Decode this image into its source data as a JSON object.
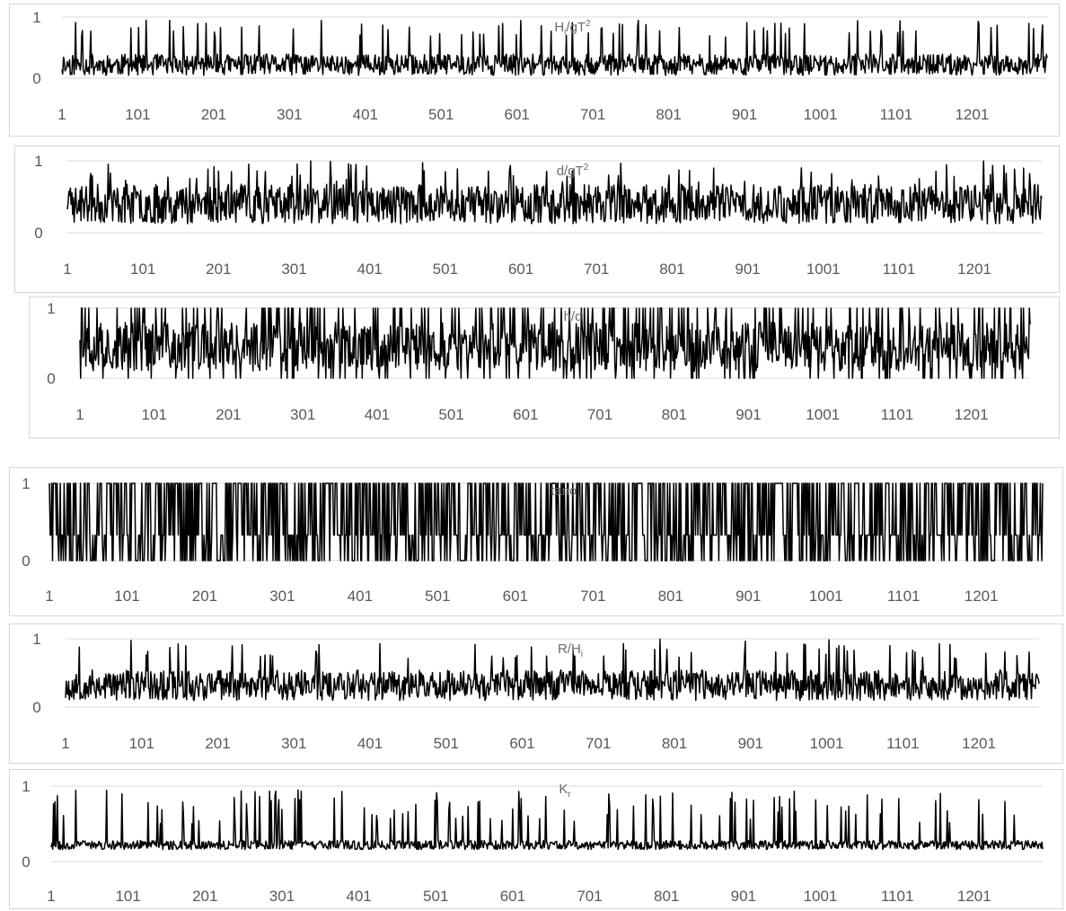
{
  "chart_data": [
    {
      "type": "line",
      "title": "Hi/gT2",
      "title_parts": {
        "main": "H",
        "sub": "i",
        "rest": "/gT",
        "sup": "2"
      },
      "x_tick_labels": [
        "1",
        "101",
        "201",
        "301",
        "401",
        "501",
        "601",
        "701",
        "801",
        "901",
        "1001",
        "1101",
        "1201"
      ],
      "xlim": [
        1,
        1300
      ],
      "ylim": [
        0,
        1
      ],
      "y_tick_labels": [
        "0",
        "1"
      ],
      "series": [
        {
          "n_points": 1300,
          "seed": 11,
          "mode": "low",
          "base": 0.22,
          "spread": 0.35,
          "peak": 0.95
        }
      ]
    },
    {
      "type": "line",
      "title": "d/gT2",
      "title_parts": {
        "main": "d",
        "sub": "",
        "rest": "/gT",
        "sup": "2"
      },
      "x_tick_labels": [
        "1",
        "101",
        "201",
        "301",
        "401",
        "501",
        "601",
        "701",
        "801",
        "901",
        "1001",
        "1101",
        "1201"
      ],
      "xlim": [
        1,
        1290
      ],
      "ylim": [
        0,
        1
      ],
      "y_tick_labels": [
        "0",
        "1"
      ],
      "series": [
        {
          "n_points": 1290,
          "seed": 23,
          "mode": "mid",
          "base": 0.4,
          "spread": 0.55,
          "peak": 1.0
        }
      ]
    },
    {
      "type": "line",
      "title": "h/d",
      "title_parts": {
        "main": "h/d",
        "sub": "",
        "rest": "",
        "sup": ""
      },
      "x_tick_labels": [
        "1",
        "101",
        "201",
        "301",
        "401",
        "501",
        "601",
        "701",
        "801",
        "901",
        "1001",
        "1101",
        "1201"
      ],
      "xlim": [
        1,
        1280
      ],
      "ylim": [
        0,
        1
      ],
      "y_tick_labels": [
        "0",
        "1"
      ],
      "series": [
        {
          "n_points": 1280,
          "seed": 37,
          "mode": "high",
          "base": 0.45,
          "spread": 0.7,
          "peak": 1.0
        }
      ]
    },
    {
      "type": "line",
      "title": "tanα",
      "title_parts": {
        "main": "tanα",
        "sub": "",
        "rest": "",
        "sup": ""
      },
      "x_tick_labels": [
        "1",
        "101",
        "201",
        "301",
        "401",
        "501",
        "601",
        "701",
        "801",
        "901",
        "1001",
        "1101",
        "1201"
      ],
      "xlim": [
        1,
        1280
      ],
      "ylim": [
        0,
        1
      ],
      "y_tick_labels": [
        "0",
        "1"
      ],
      "series": [
        {
          "n_points": 1280,
          "seed": 41,
          "mode": "binary",
          "levels": [
            0,
            0.33,
            1
          ]
        }
      ]
    },
    {
      "type": "line",
      "title": "R/Hi",
      "title_parts": {
        "main": "R/H",
        "sub": "i",
        "rest": "",
        "sup": ""
      },
      "x_tick_labels": [
        "1",
        "101",
        "201",
        "301",
        "401",
        "501",
        "601",
        "701",
        "801",
        "901",
        "1001",
        "1101",
        "1201"
      ],
      "xlim": [
        1,
        1280
      ],
      "ylim": [
        0,
        1
      ],
      "y_tick_labels": [
        "0",
        "1"
      ],
      "series": [
        {
          "n_points": 1280,
          "seed": 53,
          "mode": "low",
          "base": 0.32,
          "spread": 0.45,
          "peak": 1.0
        }
      ]
    },
    {
      "type": "line",
      "title": "Kr",
      "title_parts": {
        "main": "K",
        "sub": "r",
        "rest": "",
        "sup": ""
      },
      "x_tick_labels": [
        "1",
        "101",
        "201",
        "301",
        "401",
        "501",
        "601",
        "701",
        "801",
        "901",
        "1001",
        "1101",
        "1201"
      ],
      "xlim": [
        1,
        1290
      ],
      "ylim": [
        0,
        1
      ],
      "y_tick_labels": [
        "0",
        "1"
      ],
      "series": [
        {
          "n_points": 1290,
          "seed": 67,
          "mode": "spiky",
          "base": 0.22,
          "spread": 0.12,
          "peak": 0.95
        }
      ]
    }
  ]
}
